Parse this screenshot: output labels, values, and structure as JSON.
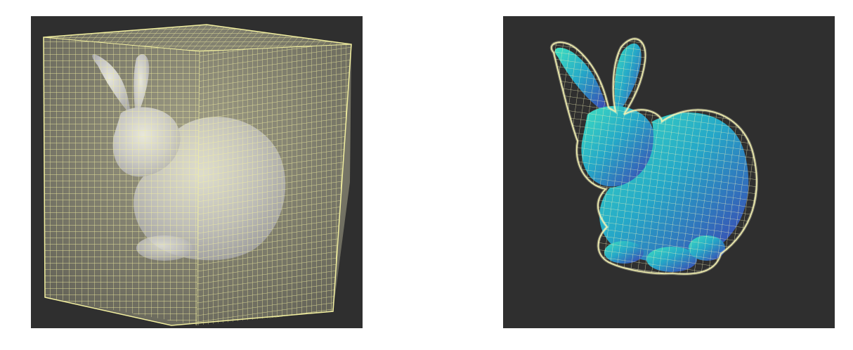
{
  "colors": {
    "background": "#2f2f2f",
    "grid_line": "#f3f0a0",
    "grid_fill": "#fffbd0",
    "bunny_left": "#c9cbe6",
    "bunny_right_a": "#25d3b6",
    "bunny_right_b": "#3d3bb0"
  },
  "panels": [
    {
      "name": "dense-voxel-grid-render",
      "depicts": "bunny-inside-full-cube-voxel-grid"
    },
    {
      "name": "adaptive-voxel-grid-render",
      "depicts": "bunny-with-surface-fitted-voxel-grid"
    }
  ]
}
